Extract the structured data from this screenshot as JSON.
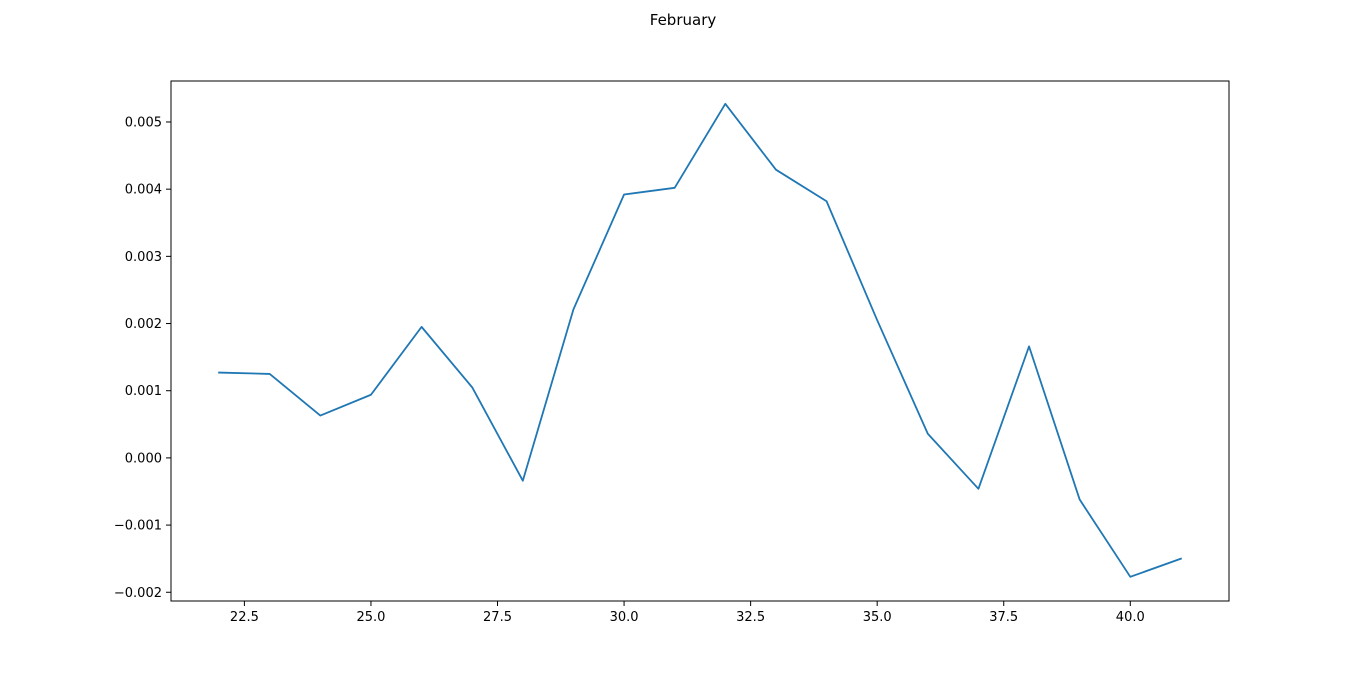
{
  "chart_data": {
    "type": "line",
    "title": "February",
    "xlabel": "",
    "ylabel": "",
    "xlim": [
      21.05,
      41.95
    ],
    "ylim": [
      -0.00213,
      0.00561
    ],
    "grid": false,
    "legend": "none",
    "line_color": "#1f77b4",
    "x_ticks": [
      22.5,
      25.0,
      27.5,
      30.0,
      32.5,
      35.0,
      37.5,
      40.0
    ],
    "x_tick_labels": [
      "22.5",
      "25.0",
      "27.5",
      "30.0",
      "32.5",
      "35.0",
      "37.5",
      "40.0"
    ],
    "y_ticks": [
      -0.002,
      -0.001,
      0.0,
      0.001,
      0.002,
      0.003,
      0.004,
      0.005
    ],
    "y_tick_labels": [
      "−0.002",
      "−0.001",
      "0.000",
      "0.001",
      "0.002",
      "0.003",
      "0.004",
      "0.005"
    ],
    "series": [
      {
        "x": [
          22,
          23,
          24,
          25,
          26,
          27,
          28,
          29,
          30,
          31,
          32,
          33,
          34,
          35,
          36,
          37,
          38,
          39,
          40,
          41
        ],
        "values": [
          0.00127,
          0.00125,
          0.00063,
          0.00094,
          0.00195,
          0.00105,
          -0.00034,
          0.00221,
          0.00392,
          0.00402,
          0.00527,
          0.00429,
          0.00382,
          0.00205,
          0.00036,
          -0.00046,
          0.00166,
          -0.00062,
          -0.00177,
          -0.0015
        ]
      }
    ]
  }
}
